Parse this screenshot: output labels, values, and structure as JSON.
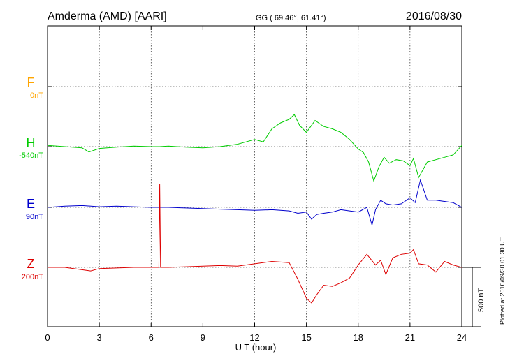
{
  "header": {
    "station": "Amderma (AMD)  [AARI]",
    "coords": "GG ( 69.46°,  61.41°)",
    "date": "2016/08/30"
  },
  "plotted_note": "Plotted at 2016/09/30 01:30 UT",
  "scale_label": "500 nT",
  "chart_data": {
    "type": "line",
    "title": "Amderma (AMD)  [AARI]",
    "xlabel": "U T (hour)",
    "xlim": [
      0,
      24
    ],
    "xticks": [
      0,
      3,
      6,
      9,
      12,
      15,
      18,
      21,
      24
    ],
    "grid": true,
    "units_per_tick": "500 nT per scale bar",
    "channels": [
      {
        "name": "F",
        "baseline_label": "0nT",
        "color": "#ffa500",
        "x": [],
        "values": []
      },
      {
        "name": "H",
        "baseline_label": "-540nT",
        "color": "#00cc00",
        "x": [
          0,
          1,
          2,
          2.4,
          3,
          4,
          5,
          6,
          6.5,
          7,
          8,
          9,
          10,
          11,
          11.5,
          12,
          12.5,
          13,
          13.5,
          14,
          14.3,
          14.6,
          15,
          15.5,
          16,
          16.5,
          17,
          17.5,
          18,
          18.3,
          18.6,
          18.9,
          19.2,
          19.5,
          19.8,
          20.2,
          20.6,
          21,
          21.2,
          21.5,
          22,
          22.5,
          23,
          23.5,
          24
        ],
        "values": [
          10,
          0,
          -10,
          -45,
          -15,
          -5,
          5,
          0,
          0,
          5,
          -5,
          -10,
          0,
          20,
          40,
          60,
          40,
          150,
          200,
          230,
          270,
          180,
          120,
          220,
          170,
          150,
          120,
          60,
          -20,
          -50,
          -130,
          -290,
          -170,
          -90,
          -140,
          -110,
          -120,
          -160,
          -100,
          -260,
          -130,
          -110,
          -90,
          -70,
          10
        ]
      },
      {
        "name": "E",
        "baseline_label": "90nT",
        "color": "#0000cc",
        "x": [
          0,
          1,
          2,
          3,
          4,
          5,
          6,
          7,
          8,
          9,
          10,
          11,
          12,
          13,
          14,
          14.5,
          15,
          15.3,
          15.6,
          16,
          16.5,
          17,
          17.5,
          18,
          18.5,
          18.8,
          19,
          19.3,
          19.6,
          20,
          20.5,
          21,
          21.3,
          21.6,
          22,
          22.5,
          23,
          23.5,
          24
        ],
        "values": [
          0,
          10,
          15,
          5,
          10,
          5,
          0,
          0,
          -5,
          -10,
          -15,
          -20,
          -25,
          -20,
          -30,
          -50,
          -40,
          -100,
          -60,
          -50,
          -40,
          -20,
          -30,
          -40,
          0,
          -150,
          -20,
          60,
          30,
          20,
          30,
          80,
          40,
          230,
          60,
          60,
          50,
          40,
          0
        ]
      },
      {
        "name": "Z",
        "baseline_label": "200nT",
        "color": "#dd0000",
        "x": [
          0,
          1,
          2,
          2.5,
          3,
          4,
          5,
          6,
          6.45,
          6.5,
          6.55,
          7,
          8,
          9,
          10,
          11,
          12,
          13,
          14,
          14.5,
          15,
          15.3,
          15.6,
          16,
          16.5,
          17,
          17.5,
          18,
          18.5,
          19,
          19.3,
          19.6,
          20,
          20.5,
          21,
          21.2,
          21.5,
          22,
          22.5,
          23,
          23.5,
          24
        ],
        "values": [
          0,
          0,
          -20,
          -30,
          -10,
          -5,
          0,
          0,
          0,
          700,
          0,
          0,
          5,
          10,
          15,
          10,
          30,
          50,
          40,
          -100,
          -260,
          -300,
          -230,
          -150,
          -160,
          -130,
          -90,
          20,
          110,
          20,
          60,
          -60,
          80,
          110,
          120,
          150,
          30,
          20,
          -40,
          50,
          20,
          0
        ]
      }
    ]
  }
}
